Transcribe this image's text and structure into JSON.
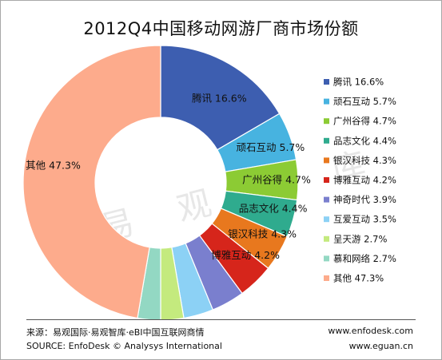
{
  "chart_data": {
    "type": "pie",
    "style": "donut",
    "title": "2012Q4中国移动网游厂商市场份额",
    "legend_position": "right",
    "slices": [
      {
        "name": "腾讯",
        "value": 16.6,
        "value_label": "16.6%",
        "color": "#3d5eb0"
      },
      {
        "name": "顽石互动",
        "value": 5.7,
        "value_label": "5.7%",
        "color": "#47b3e0"
      },
      {
        "name": "广州谷得",
        "value": 4.7,
        "value_label": "4.7%",
        "color": "#8ccb34"
      },
      {
        "name": "品志文化",
        "value": 4.4,
        "value_label": "4.4%",
        "color": "#2fab8e"
      },
      {
        "name": "银汉科技",
        "value": 4.3,
        "value_label": "4.3%",
        "color": "#e8781e"
      },
      {
        "name": "博雅互动",
        "value": 4.2,
        "value_label": "4.2%",
        "color": "#d6251b"
      },
      {
        "name": "神奇时代",
        "value": 3.9,
        "value_label": "3.9%",
        "color": "#7a7fce"
      },
      {
        "name": "互爱互动",
        "value": 3.5,
        "value_label": "3.5%",
        "color": "#8cd1f5"
      },
      {
        "name": "呈天游",
        "value": 2.7,
        "value_label": "2.7%",
        "color": "#c4ea7e"
      },
      {
        "name": "慕和网络",
        "value": 2.7,
        "value_label": "2.7%",
        "color": "#93d8c3"
      },
      {
        "name": "其他",
        "value": 47.3,
        "value_label": "47.3%",
        "color": "#fdab8c"
      }
    ],
    "on_chart_labels": [
      "腾讯",
      "顽石互动",
      "广州谷得",
      "品志文化",
      "银汉科技",
      "博雅互动",
      "其他"
    ]
  },
  "watermark": "易 观 智 库",
  "footer": {
    "source_cn": "来源：易观国际·易观智库·eBI中国互联网商情",
    "source_en": "SOURCE:  EnfoDesk © Analysys International",
    "url1": "www.enfodesk.com",
    "url2": "www.eguan.cn"
  }
}
